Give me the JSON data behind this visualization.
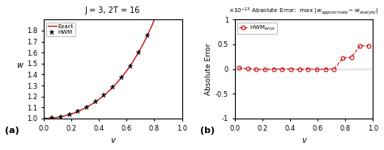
{
  "title_left": "J = 3, 2T = 16",
  "xlabel": "v",
  "ylabel_left": "w",
  "ylabel_right": "Absolute Error",
  "legend_left_1": "Exact",
  "legend_left_2": "HWM",
  "legend_right": "HWM$_{error}$",
  "ylim_left": [
    1.0,
    1.9
  ],
  "ylim_right": [
    -1e-13,
    1e-13
  ],
  "xlim": [
    0,
    1.0
  ],
  "line_color": "#cc1111",
  "err_color": "#cc1111",
  "bg_color": "#ffffff",
  "n_hwm": 16,
  "x_err": [
    0.03125,
    0.09375,
    0.15625,
    0.21875,
    0.28125,
    0.34375,
    0.40625,
    0.46875,
    0.53125,
    0.59375,
    0.65625,
    0.71875,
    0.78125,
    0.84375,
    0.90625,
    0.96875
  ],
  "y_err": [
    2e-15,
    1e-15,
    -1e-15,
    -1e-15,
    0.0,
    0.0,
    0.0,
    -1e-15,
    0.0,
    -1e-15,
    0.0,
    0.0,
    2.2e-14,
    2.4e-14,
    4.7e-14,
    4.7e-14
  ]
}
